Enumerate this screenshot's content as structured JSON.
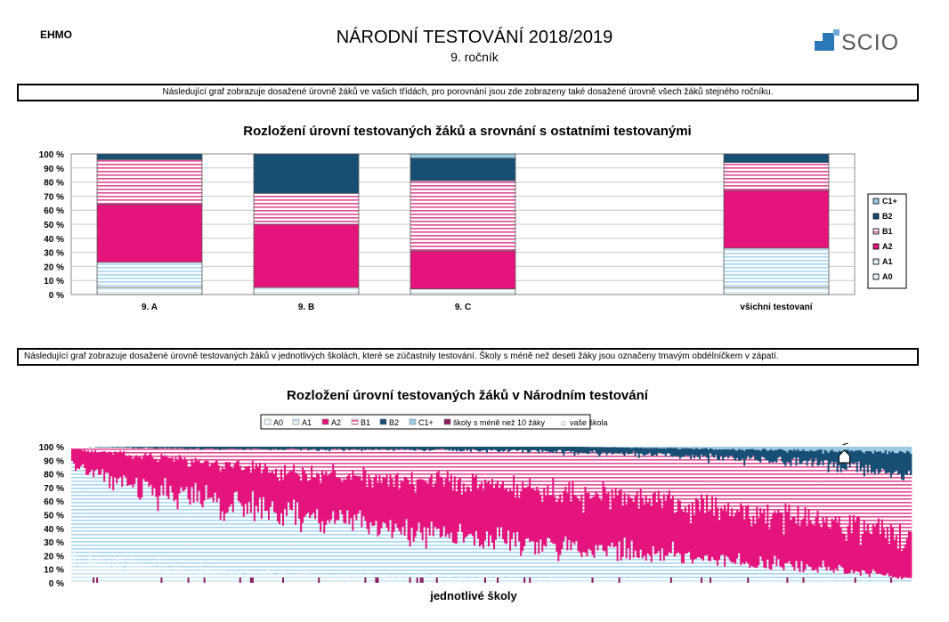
{
  "header": {
    "school_code": "EHMO",
    "title": "NÁRODNÍ TESTOVÁNÍ 2018/2019",
    "subtitle": "9. ročník",
    "logo_text": "SCIO"
  },
  "notes": {
    "note1": "Následující graf zobrazuje dosažené úrovně žáků ve vašich třídách, pro porovnání jsou zde zobrazeny také dosažené úrovně všech žáků stejného ročníku.",
    "note2": "Následující graf zobrazuje dosažené úrovně testovaných žáků v jednotlivých školách, které se zúčastnily testování. Školy s méně než deseti žáky jsou označeny tmavým obdélníčkem v zápatí."
  },
  "colors": {
    "A0": "#cfe7f3",
    "A1": "#a8d6ee",
    "A2": "#e5147d",
    "B1": "#e04a94",
    "B2": "#174e74",
    "C1+": "#9ccbe4",
    "small_school": "#8a1c5a",
    "grid": "#c8c8c8"
  },
  "chart_data": [
    {
      "type": "bar",
      "stacked": true,
      "title": "Rozložení úrovní testovaných žáků a srovnání s ostatními testovanými",
      "categories": [
        "9. A",
        "9. B",
        "9. C",
        "",
        "všichni testovaní"
      ],
      "series": [
        {
          "name": "A0",
          "values": [
            5,
            5,
            4,
            null,
            5
          ]
        },
        {
          "name": "A1",
          "values": [
            18,
            0,
            0,
            null,
            28
          ]
        },
        {
          "name": "A2",
          "values": [
            41,
            45,
            27,
            null,
            41
          ]
        },
        {
          "name": "B1",
          "values": [
            32,
            22,
            50,
            null,
            20
          ]
        },
        {
          "name": "B2",
          "values": [
            4,
            28,
            16,
            null,
            6
          ]
        },
        {
          "name": "C1+",
          "values": [
            0,
            0,
            3,
            null,
            0
          ]
        }
      ],
      "ylim": [
        0,
        100
      ],
      "yticks": [
        "0 %",
        "10 %",
        "20 %",
        "30 %",
        "40 %",
        "50 %",
        "60 %",
        "70 %",
        "80 %",
        "90 %",
        "100 %"
      ],
      "legend_order": [
        "C1+",
        "B2",
        "B1",
        "A2",
        "A1",
        "A0"
      ],
      "legend_position": "right",
      "grid": true
    },
    {
      "type": "area",
      "stacked": true,
      "title": "Rozložení úrovní testovaných žáků v Národním testování",
      "xlabel": "jednotlivé školy",
      "ylim": [
        0,
        100
      ],
      "yticks": [
        "0 %",
        "10 %",
        "20 %",
        "30 %",
        "40 %",
        "50 %",
        "60 %",
        "70 %",
        "80 %",
        "90 %",
        "100 %"
      ],
      "legend": [
        "A0",
        "A1",
        "A2",
        "B1",
        "B2",
        "C1+",
        "školy s méně než 10 žáky",
        "vaše škola"
      ],
      "legend_position": "top",
      "x": [
        0,
        10,
        20,
        30,
        40,
        50,
        60,
        70,
        80,
        90,
        100
      ],
      "series": [
        {
          "name": "A0",
          "values": [
            20,
            12,
            8,
            6,
            5,
            4,
            3,
            3,
            2,
            2,
            1
          ]
        },
        {
          "name": "A1",
          "values": [
            66,
            56,
            48,
            40,
            33,
            27,
            22,
            18,
            13,
            8,
            2
          ]
        },
        {
          "name": "A2",
          "values": [
            12,
            25,
            30,
            34,
            37,
            39,
            40,
            39,
            38,
            35,
            30
          ]
        },
        {
          "name": "B1",
          "values": [
            2,
            6,
            12,
            18,
            23,
            27,
            31,
            34,
            38,
            42,
            45
          ]
        },
        {
          "name": "B2",
          "values": [
            0,
            1,
            2,
            2,
            2,
            3,
            4,
            5,
            7,
            10,
            18
          ]
        },
        {
          "name": "C1+",
          "values": [
            0,
            0,
            0,
            0,
            0,
            0,
            0,
            1,
            2,
            3,
            4
          ]
        }
      ],
      "your_school_x": 92
    }
  ]
}
